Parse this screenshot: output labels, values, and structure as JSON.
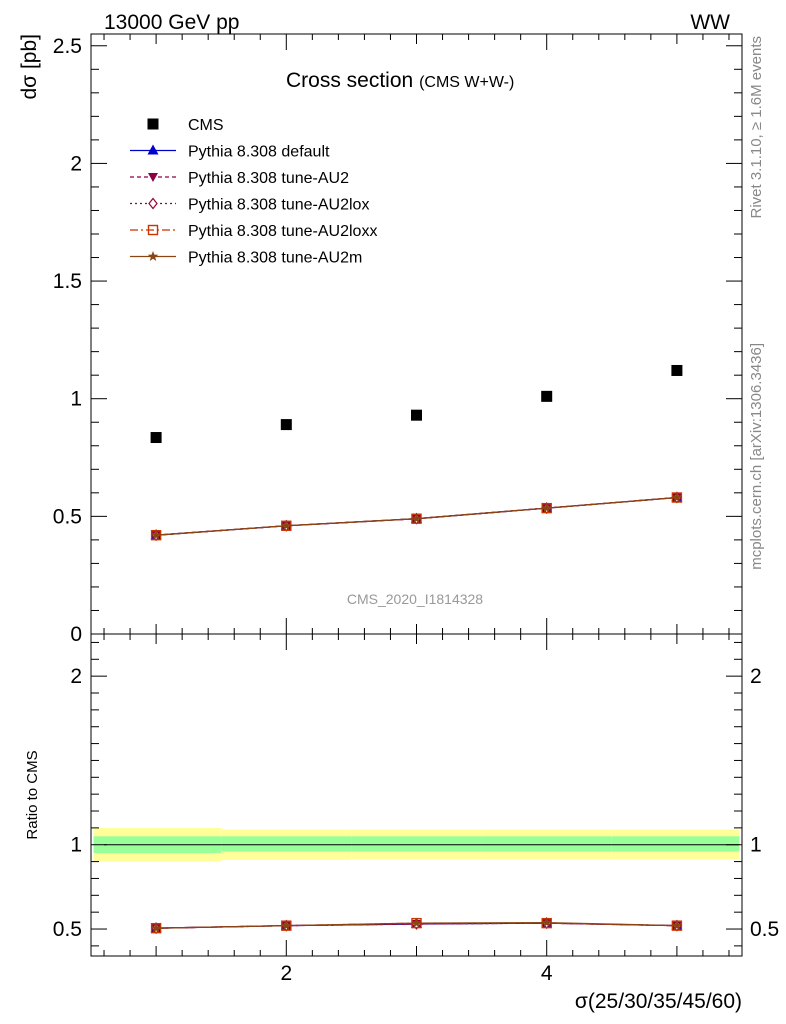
{
  "header": {
    "left": "13000 GeV pp",
    "right": "WW"
  },
  "side_labels": {
    "rivet": "Rivet 3.1.10, ≥ 1.6M events",
    "mcplots": "mcplots.cern.ch [arXiv:1306.3436]"
  },
  "chart_data": {
    "type": "scatter",
    "title": "Cross section",
    "subtitle": "(CMS W+W-)",
    "watermark": "CMS_2020_I1814328",
    "xlabel": "σ(25/30/35/45/60)",
    "ylabel": "dσ [pb]",
    "ratio_ylabel": "Ratio to CMS",
    "xlim": [
      0.5,
      5.5
    ],
    "ylim": [
      0,
      2.55
    ],
    "ratio_ylim": [
      0.34,
      2.25
    ],
    "x_ticks": [
      "2",
      "4"
    ],
    "y_ticks": [
      "0",
      "0.5",
      "1",
      "1.5",
      "2",
      "2.5"
    ],
    "ratio_y_ticks": [
      "0.5",
      "1",
      "2"
    ],
    "x": [
      1,
      2,
      3,
      4,
      5
    ],
    "data": {
      "name": "CMS",
      "color": "#000000",
      "values": [
        0.835,
        0.89,
        0.93,
        1.01,
        1.12
      ],
      "ratio_band_inner": [
        [
          0.95,
          1.05
        ],
        [
          0.96,
          1.05
        ],
        [
          0.96,
          1.05
        ],
        [
          0.96,
          1.05
        ],
        [
          0.96,
          1.05
        ]
      ],
      "ratio_band_outer": [
        [
          0.9,
          1.1
        ],
        [
          0.91,
          1.09
        ],
        [
          0.915,
          1.09
        ],
        [
          0.915,
          1.09
        ],
        [
          0.915,
          1.09
        ]
      ]
    },
    "series": [
      {
        "name": "Pythia 8.308 default",
        "color": "#0000cc",
        "dash": "",
        "marker": "triangle",
        "values": [
          0.42,
          0.46,
          0.49,
          0.535,
          0.58
        ],
        "ratio": [
          0.505,
          0.52,
          0.53,
          0.535,
          0.52
        ]
      },
      {
        "name": "Pythia 8.308 tune-AU2",
        "color": "#8b0045",
        "dash": "4,3",
        "marker": "triangle-down",
        "values": [
          0.42,
          0.46,
          0.49,
          0.535,
          0.58
        ],
        "ratio": [
          0.505,
          0.52,
          0.53,
          0.535,
          0.52
        ]
      },
      {
        "name": "Pythia 8.308 tune-AU2lox",
        "color": "#990033",
        "dash": "2,3",
        "marker": "diamond",
        "values": [
          0.42,
          0.46,
          0.49,
          0.535,
          0.58
        ],
        "ratio": [
          0.505,
          0.52,
          0.53,
          0.535,
          0.52
        ]
      },
      {
        "name": "Pythia 8.308 tune-AU2loxx",
        "color": "#cc3300",
        "dash": "8,3,2,3",
        "marker": "square-open",
        "values": [
          0.42,
          0.46,
          0.49,
          0.535,
          0.58
        ],
        "ratio": [
          0.505,
          0.52,
          0.535,
          0.535,
          0.52
        ]
      },
      {
        "name": "Pythia 8.308 tune-AU2m",
        "color": "#8b4513",
        "dash": "",
        "marker": "star",
        "values": [
          0.42,
          0.46,
          0.49,
          0.535,
          0.58
        ],
        "ratio": [
          0.505,
          0.52,
          0.535,
          0.538,
          0.52
        ]
      }
    ],
    "colors": {
      "band_inner": "#99ff99",
      "band_outer": "#ffff99"
    }
  }
}
